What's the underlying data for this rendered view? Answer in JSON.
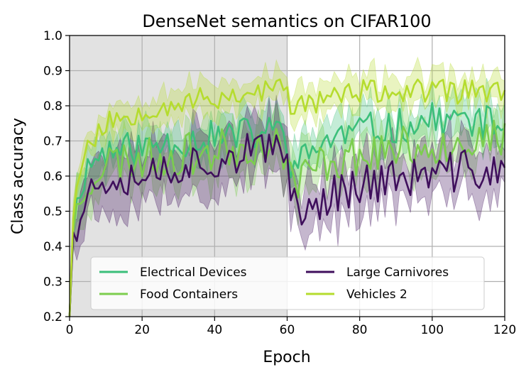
{
  "chart_data": {
    "type": "line",
    "title": "DenseNet semantics on CIFAR100",
    "xlabel": "Epoch",
    "ylabel": "Class accuracy",
    "xlim": [
      0,
      120
    ],
    "ylim": [
      0.2,
      1.0
    ],
    "xticks": [
      0,
      20,
      40,
      60,
      80,
      100,
      120
    ],
    "xtick_labels": [
      "0",
      "20",
      "40",
      "60",
      "80",
      "100",
      "120"
    ],
    "yticks": [
      0.2,
      0.3,
      0.4,
      0.5,
      0.6,
      0.7,
      0.8,
      0.9,
      1.0
    ],
    "ytick_labels": [
      "0.2",
      "0.3",
      "0.4",
      "0.5",
      "0.6",
      "0.7",
      "0.8",
      "0.9",
      "1.0"
    ],
    "grid": true,
    "shaded_region": {
      "x_start": 0,
      "x_end": 60,
      "color": "#e2e2e2"
    },
    "legend": {
      "placement": "bottom",
      "columns": 2
    },
    "series": [
      {
        "name": "Electrical Devices",
        "color": "#3bbf7a",
        "anchors": [
          [
            0,
            0.2
          ],
          [
            1,
            0.45
          ],
          [
            3,
            0.58
          ],
          [
            6,
            0.64
          ],
          [
            10,
            0.67
          ],
          [
            20,
            0.68
          ],
          [
            30,
            0.7
          ],
          [
            40,
            0.71
          ],
          [
            50,
            0.72
          ],
          [
            59,
            0.73
          ],
          [
            60,
            0.7
          ],
          [
            61,
            0.64
          ],
          [
            63,
            0.63
          ],
          [
            70,
            0.7
          ],
          [
            80,
            0.73
          ],
          [
            90,
            0.74
          ],
          [
            100,
            0.76
          ],
          [
            110,
            0.76
          ],
          [
            120,
            0.74
          ]
        ],
        "band": 0.05,
        "noise": 0.05,
        "seed": 11
      },
      {
        "name": "Food Containers",
        "color": "#7ccd4e",
        "anchors": [
          [
            0,
            0.2
          ],
          [
            1,
            0.44
          ],
          [
            3,
            0.55
          ],
          [
            6,
            0.6
          ],
          [
            10,
            0.64
          ],
          [
            20,
            0.65
          ],
          [
            30,
            0.66
          ],
          [
            40,
            0.67
          ],
          [
            50,
            0.69
          ],
          [
            59,
            0.68
          ],
          [
            60,
            0.66
          ],
          [
            61,
            0.6
          ],
          [
            63,
            0.59
          ],
          [
            70,
            0.64
          ],
          [
            80,
            0.66
          ],
          [
            90,
            0.68
          ],
          [
            100,
            0.69
          ],
          [
            110,
            0.7
          ],
          [
            120,
            0.7
          ]
        ],
        "band": 0.06,
        "noise": 0.06,
        "seed": 23
      },
      {
        "name": "Large Carnivores",
        "color": "#3f0f5c",
        "anchors": [
          [
            0,
            0.2
          ],
          [
            1,
            0.44
          ],
          [
            3,
            0.5
          ],
          [
            6,
            0.56
          ],
          [
            10,
            0.6
          ],
          [
            20,
            0.61
          ],
          [
            30,
            0.63
          ],
          [
            40,
            0.65
          ],
          [
            50,
            0.67
          ],
          [
            59,
            0.66
          ],
          [
            60,
            0.64
          ],
          [
            61,
            0.57
          ],
          [
            63,
            0.52
          ],
          [
            66,
            0.5
          ],
          [
            70,
            0.54
          ],
          [
            80,
            0.58
          ],
          [
            90,
            0.59
          ],
          [
            100,
            0.6
          ],
          [
            110,
            0.62
          ],
          [
            120,
            0.61
          ]
        ],
        "band": 0.07,
        "noise": 0.06,
        "seed": 37
      },
      {
        "name": "Vehicles 2",
        "color": "#b5dc2e",
        "anchors": [
          [
            0,
            0.2
          ],
          [
            1,
            0.48
          ],
          [
            3,
            0.63
          ],
          [
            6,
            0.7
          ],
          [
            10,
            0.75
          ],
          [
            20,
            0.79
          ],
          [
            30,
            0.81
          ],
          [
            40,
            0.82
          ],
          [
            50,
            0.84
          ],
          [
            59,
            0.85
          ],
          [
            60,
            0.83
          ],
          [
            61,
            0.8
          ],
          [
            63,
            0.8
          ],
          [
            70,
            0.82
          ],
          [
            80,
            0.84
          ],
          [
            90,
            0.84
          ],
          [
            100,
            0.84
          ],
          [
            110,
            0.84
          ],
          [
            120,
            0.84
          ]
        ],
        "band": 0.04,
        "noise": 0.035,
        "seed": 53
      }
    ]
  }
}
